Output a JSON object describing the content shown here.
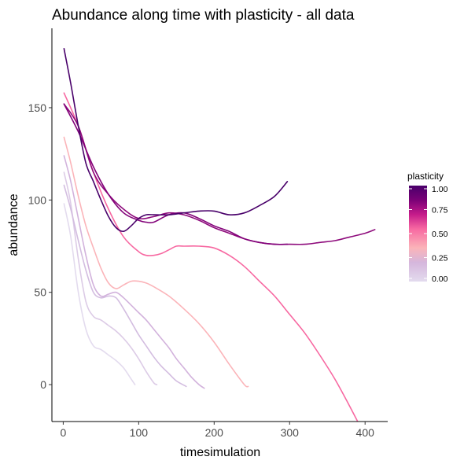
{
  "chart_data": {
    "type": "line",
    "title": "Abundance along time with plasticity - all data",
    "xlabel": "timesimulation",
    "ylabel": "abundance",
    "xlim": [
      -15,
      430
    ],
    "ylim": [
      -20,
      193
    ],
    "x_ticks": [
      0,
      100,
      200,
      300,
      400
    ],
    "y_ticks": [
      0,
      50,
      100,
      150
    ],
    "grid": false,
    "legend": {
      "title": "plasticity",
      "placement": "right",
      "type": "continuous",
      "ticks": [
        0.0,
        0.25,
        0.5,
        0.75,
        1.0
      ],
      "tick_labels": [
        "0.00",
        "0.25",
        "0.50",
        "0.75",
        "1.00"
      ],
      "colors": [
        "#e3dbee",
        "#d5b6dc",
        "#fbb4b9",
        "#f768a1",
        "#c51b8a",
        "#7a0177",
        "#49006a"
      ]
    },
    "series": [
      {
        "plasticity": 0.0,
        "color": "#e3dbee",
        "x": [
          1,
          10,
          20,
          30,
          40,
          50,
          60,
          70,
          80,
          90,
          95
        ],
        "y": [
          98,
          80,
          50,
          30,
          21,
          19,
          16,
          13,
          9,
          3,
          0
        ]
      },
      {
        "plasticity": 0.05,
        "color": "#dccbe6",
        "x": [
          1,
          10,
          20,
          30,
          40,
          50,
          60,
          70,
          80,
          90,
          100,
          110,
          120,
          124
        ],
        "y": [
          115,
          98,
          68,
          45,
          37,
          35,
          32,
          29,
          25,
          20,
          14,
          7,
          1,
          0
        ]
      },
      {
        "plasticity": 0.1,
        "color": "#d3bde0",
        "x": [
          1,
          10,
          20,
          30,
          40,
          50,
          60,
          70,
          80,
          90,
          100,
          110,
          120,
          130,
          140,
          150,
          163
        ],
        "y": [
          108,
          95,
          78,
          62,
          50,
          47,
          48,
          47,
          41,
          34,
          27,
          21,
          15,
          10,
          6,
          2,
          -1
        ]
      },
      {
        "plasticity": 0.15,
        "color": "#d2b2dc",
        "x": [
          1,
          10,
          20,
          30,
          40,
          50,
          60,
          70,
          80,
          90,
          100,
          110,
          120,
          130,
          140,
          150,
          160,
          170,
          180,
          187
        ],
        "y": [
          124,
          110,
          90,
          70,
          54,
          48,
          49,
          50,
          47,
          43,
          39,
          35,
          30,
          25,
          20,
          14,
          9,
          4,
          0,
          -2
        ]
      },
      {
        "plasticity": 0.3,
        "color": "#fbb4b9",
        "x": [
          1,
          10,
          20,
          30,
          40,
          50,
          60,
          70,
          80,
          90,
          100,
          110,
          120,
          140,
          160,
          180,
          200,
          220,
          240,
          245
        ],
        "y": [
          134,
          120,
          102,
          86,
          74,
          63,
          55,
          52,
          54,
          56,
          56,
          55,
          53,
          48,
          41,
          33,
          23,
          11,
          0,
          -1
        ]
      },
      {
        "plasticity": 0.5,
        "color": "#f768a1",
        "x": [
          1,
          20,
          40,
          60,
          80,
          100,
          110,
          120,
          130,
          140,
          150,
          160,
          180,
          200,
          220,
          240,
          260,
          280,
          300,
          320,
          340,
          360,
          380,
          400,
          410
        ],
        "y": [
          158,
          140,
          115,
          95,
          80,
          72,
          70,
          70,
          71,
          73,
          75,
          75,
          75,
          74,
          70,
          64,
          56,
          48,
          38,
          28,
          16,
          3,
          -12,
          -28,
          -37
        ]
      },
      {
        "plasticity": 0.8,
        "color": "#8e0b7c",
        "x": [
          1,
          20,
          40,
          60,
          80,
          100,
          120,
          140,
          160,
          180,
          200,
          220,
          240,
          260,
          280,
          300,
          320,
          340,
          360,
          380,
          400,
          413
        ],
        "y": [
          152,
          140,
          115,
          103,
          95,
          90,
          91,
          93,
          92,
          89,
          85,
          82,
          79,
          77,
          76,
          76,
          76,
          77,
          78,
          80,
          82,
          84
        ]
      },
      {
        "plasticity": 0.85,
        "color": "#820179",
        "x": [
          1,
          20,
          40,
          60,
          80,
          100,
          110,
          120,
          140,
          160,
          180,
          200,
          220,
          240,
          260,
          280,
          297
        ],
        "y": [
          152,
          137,
          118,
          103,
          93,
          89,
          88,
          88,
          92,
          93,
          90,
          86,
          83,
          79,
          77,
          76,
          76
        ]
      },
      {
        "plasticity": 1.0,
        "color": "#49006a",
        "x": [
          1,
          10,
          20,
          30,
          40,
          50,
          60,
          70,
          80,
          90,
          100,
          110,
          120,
          140,
          160,
          180,
          200,
          220,
          240,
          260,
          280,
          297
        ],
        "y": [
          182,
          163,
          140,
          120,
          110,
          100,
          91,
          85,
          83,
          86,
          90,
          92,
          92,
          92,
          93,
          94,
          94,
          92,
          93,
          97,
          102,
          110
        ]
      }
    ]
  }
}
